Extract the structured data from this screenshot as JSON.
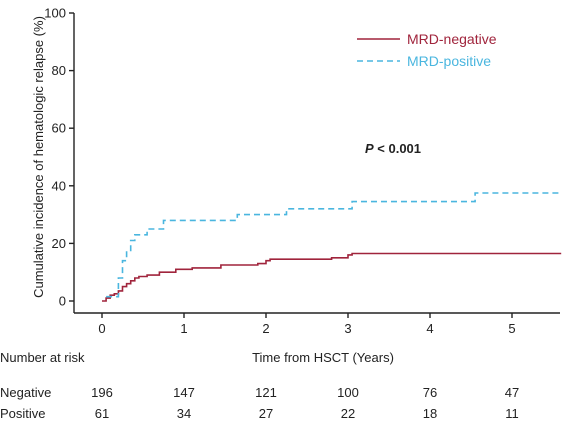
{
  "chart_data": {
    "type": "line",
    "title": "",
    "xlabel": "Time from HSCT (Years)",
    "ylabel": "Cumulative incidence of hematologic relapse (%)",
    "xlim": [
      -0.2,
      5.6
    ],
    "ylim": [
      0,
      100
    ],
    "x_ticks": [
      0,
      1,
      2,
      3,
      4,
      5
    ],
    "y_ticks": [
      0,
      20,
      40,
      60,
      80,
      100
    ],
    "grid": false,
    "legend_position": "top-right",
    "annotation": {
      "italic": "P",
      "text": " < 0.001"
    },
    "series": [
      {
        "name": "MRD-negative",
        "color": "#a0243c",
        "style": "solid",
        "x": [
          0,
          0.05,
          0.05,
          0.1,
          0.1,
          0.15,
          0.15,
          0.2,
          0.2,
          0.25,
          0.25,
          0.3,
          0.3,
          0.35,
          0.35,
          0.4,
          0.4,
          0.45,
          0.45,
          0.55,
          0.55,
          0.7,
          0.7,
          0.9,
          0.9,
          1.1,
          1.1,
          1.45,
          1.45,
          1.9,
          1.9,
          2.0,
          2.0,
          2.05,
          2.05,
          2.8,
          2.8,
          3.0,
          3.0,
          3.05,
          3.05,
          5.6
        ],
        "y": [
          0,
          0,
          1,
          1,
          2,
          2,
          2.5,
          2.5,
          3.5,
          3.5,
          5,
          5,
          6,
          6,
          7,
          7,
          8,
          8,
          8.5,
          8.5,
          9,
          9,
          10,
          10,
          11,
          11,
          11.5,
          11.5,
          12.5,
          12.5,
          13,
          13,
          14,
          14,
          14.5,
          14.5,
          15,
          15,
          16,
          16,
          16.5,
          16.5
        ]
      },
      {
        "name": "MRD-positive",
        "color": "#4ab6df",
        "style": "dashed",
        "x": [
          0.05,
          0.2,
          0.2,
          0.25,
          0.25,
          0.3,
          0.3,
          0.35,
          0.35,
          0.4,
          0.4,
          0.55,
          0.55,
          0.75,
          0.75,
          1.65,
          1.65,
          2.25,
          2.25,
          3.05,
          3.05,
          4.55,
          4.55,
          5.6
        ],
        "y": [
          1.5,
          1.5,
          8,
          8,
          14,
          14,
          17,
          17,
          21,
          21,
          23,
          23,
          25,
          25,
          28,
          28,
          30,
          30,
          32,
          32,
          34.5,
          34.5,
          37.5,
          37.5
        ]
      }
    ]
  },
  "risk_table": {
    "header": "Number at risk",
    "rows": [
      {
        "label": "Negative",
        "values": [
          "196",
          "147",
          "121",
          "100",
          "76",
          "47"
        ]
      },
      {
        "label": "Positive",
        "values": [
          "61",
          "34",
          "27",
          "22",
          "18",
          "11"
        ]
      }
    ]
  }
}
